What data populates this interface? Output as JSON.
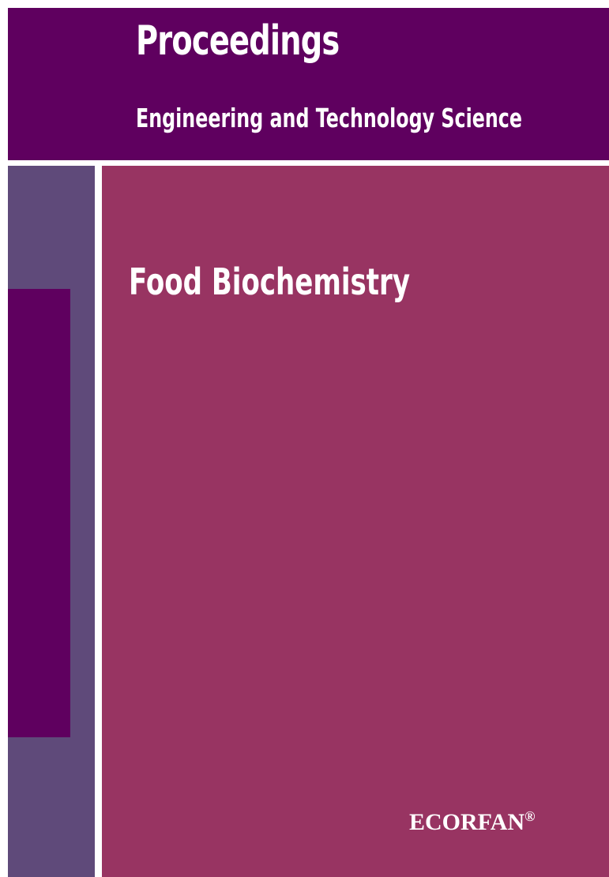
{
  "header": {
    "title": "Proceedings",
    "subtitle": "Engineering and Technology Science"
  },
  "main": {
    "title": "Food Biochemistry",
    "publisher": "ECORFAN",
    "mark": "®"
  }
}
